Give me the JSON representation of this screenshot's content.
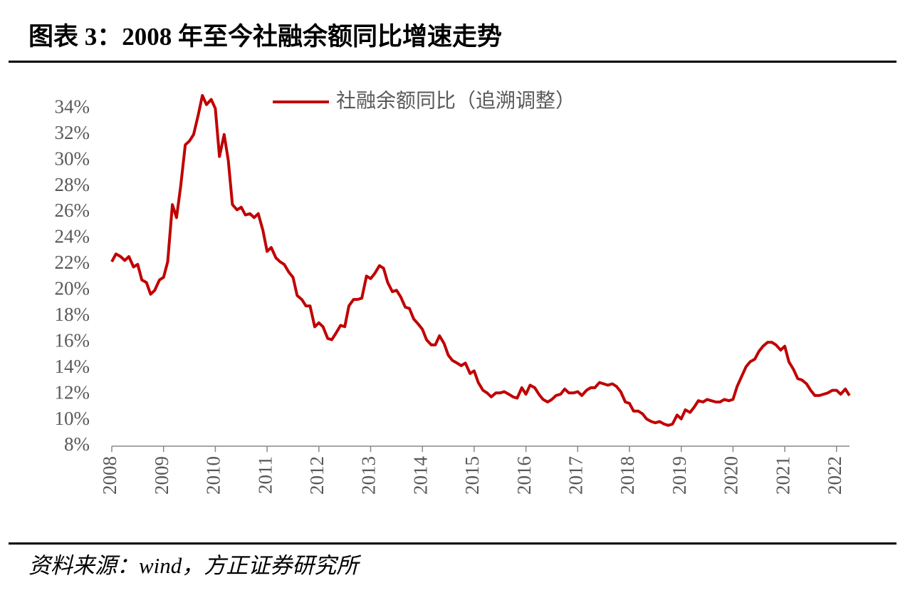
{
  "chart_data": {
    "type": "line",
    "title": "图表 3：2008 年至今社融余额同比增速走势",
    "source": "资料来源：wind，方正证券研究所",
    "x": [
      2008.0,
      2008.08,
      2008.17,
      2008.25,
      2008.33,
      2008.42,
      2008.5,
      2008.58,
      2008.67,
      2008.75,
      2008.83,
      2008.92,
      2009.0,
      2009.08,
      2009.17,
      2009.25,
      2009.33,
      2009.42,
      2009.5,
      2009.58,
      2009.67,
      2009.75,
      2009.83,
      2009.92,
      2010.0,
      2010.08,
      2010.17,
      2010.25,
      2010.33,
      2010.42,
      2010.5,
      2010.58,
      2010.67,
      2010.75,
      2010.83,
      2010.92,
      2011.0,
      2011.08,
      2011.17,
      2011.25,
      2011.33,
      2011.42,
      2011.5,
      2011.58,
      2011.67,
      2011.75,
      2011.83,
      2011.92,
      2012.0,
      2012.08,
      2012.17,
      2012.25,
      2012.33,
      2012.42,
      2012.5,
      2012.58,
      2012.67,
      2012.75,
      2012.83,
      2012.92,
      2013.0,
      2013.08,
      2013.17,
      2013.25,
      2013.33,
      2013.42,
      2013.5,
      2013.58,
      2013.67,
      2013.75,
      2013.83,
      2013.92,
      2014.0,
      2014.08,
      2014.17,
      2014.25,
      2014.33,
      2014.42,
      2014.5,
      2014.58,
      2014.67,
      2014.75,
      2014.83,
      2014.92,
      2015.0,
      2015.08,
      2015.17,
      2015.25,
      2015.33,
      2015.42,
      2015.5,
      2015.58,
      2015.67,
      2015.75,
      2015.83,
      2015.92,
      2016.0,
      2016.08,
      2016.17,
      2016.25,
      2016.33,
      2016.42,
      2016.5,
      2016.58,
      2016.67,
      2016.75,
      2016.83,
      2016.92,
      2017.0,
      2017.08,
      2017.17,
      2017.25,
      2017.33,
      2017.42,
      2017.5,
      2017.58,
      2017.67,
      2017.75,
      2017.83,
      2017.92,
      2018.0,
      2018.08,
      2018.17,
      2018.25,
      2018.33,
      2018.42,
      2018.5,
      2018.58,
      2018.67,
      2018.75,
      2018.83,
      2018.92,
      2019.0,
      2019.08,
      2019.17,
      2019.25,
      2019.33,
      2019.42,
      2019.5,
      2019.58,
      2019.67,
      2019.75,
      2019.83,
      2019.92,
      2020.0,
      2020.08,
      2020.17,
      2020.25,
      2020.33,
      2020.42,
      2020.5,
      2020.58,
      2020.67,
      2020.75,
      2020.83,
      2020.92,
      2021.0,
      2021.08,
      2021.17,
      2021.25,
      2021.33,
      2021.42,
      2021.5,
      2021.58,
      2021.67,
      2021.75,
      2021.83,
      2021.92,
      2022.0,
      2022.08,
      2022.17,
      2022.25
    ],
    "series": [
      {
        "name": "社融余额同比（追溯调整）",
        "color": "#c00000",
        "values": [
          22.2,
          22.8,
          22.6,
          22.3,
          22.6,
          21.8,
          22.0,
          20.8,
          20.6,
          19.7,
          20.0,
          20.8,
          21.0,
          22.2,
          26.6,
          25.6,
          28.0,
          31.2,
          31.5,
          32.0,
          33.5,
          35.0,
          34.3,
          34.7,
          34.0,
          30.3,
          32.0,
          30.0,
          26.6,
          26.2,
          26.4,
          25.8,
          25.9,
          25.6,
          25.9,
          24.6,
          23.0,
          23.3,
          22.5,
          22.2,
          22.0,
          21.4,
          21.0,
          19.6,
          19.3,
          18.8,
          18.8,
          17.2,
          17.5,
          17.2,
          16.3,
          16.2,
          16.7,
          17.3,
          17.2,
          18.8,
          19.3,
          19.3,
          19.4,
          21.1,
          20.9,
          21.3,
          21.9,
          21.7,
          20.6,
          19.9,
          20.0,
          19.5,
          18.7,
          18.6,
          17.8,
          17.4,
          17.0,
          16.2,
          15.8,
          15.8,
          16.5,
          15.9,
          15.0,
          14.6,
          14.4,
          14.2,
          14.4,
          13.6,
          13.8,
          12.9,
          12.3,
          12.1,
          11.8,
          12.1,
          12.1,
          12.2,
          12.0,
          11.8,
          11.7,
          12.5,
          12.0,
          12.7,
          12.5,
          12.0,
          11.6,
          11.4,
          11.6,
          11.9,
          12.0,
          12.4,
          12.1,
          12.1,
          12.2,
          11.9,
          12.3,
          12.5,
          12.5,
          12.9,
          12.8,
          12.7,
          12.8,
          12.6,
          12.2,
          11.4,
          11.3,
          10.7,
          10.7,
          10.5,
          10.1,
          9.9,
          9.8,
          9.9,
          9.7,
          9.6,
          9.7,
          10.4,
          10.1,
          10.8,
          10.6,
          11.0,
          11.5,
          11.4,
          11.6,
          11.5,
          11.4,
          11.4,
          11.6,
          11.5,
          11.6,
          12.6,
          13.4,
          14.1,
          14.5,
          14.7,
          15.3,
          15.7,
          16.0,
          16.0,
          15.8,
          15.4,
          15.7,
          14.5,
          13.9,
          13.2,
          13.1,
          12.8,
          12.3,
          11.9,
          11.9,
          12.0,
          12.1,
          12.3,
          12.3,
          12.0,
          12.4,
          11.9
        ]
      }
    ],
    "xlim": [
      2008,
      2022.25
    ],
    "xticks": [
      2008,
      2009,
      2010,
      2011,
      2012,
      2013,
      2014,
      2015,
      2016,
      2017,
      2018,
      2019,
      2020,
      2021,
      2022
    ],
    "ylim": [
      8,
      35
    ],
    "yticks": [
      {
        "value": 8,
        "label": "8%"
      },
      {
        "value": 10,
        "label": "10%"
      },
      {
        "value": 12,
        "label": "12%"
      },
      {
        "value": 14,
        "label": "14%"
      },
      {
        "value": 16,
        "label": "16%"
      },
      {
        "value": 18,
        "label": "18%"
      },
      {
        "value": 20,
        "label": "20%"
      },
      {
        "value": 22,
        "label": "22%"
      },
      {
        "value": 24,
        "label": "24%"
      },
      {
        "value": 26,
        "label": "26%"
      },
      {
        "value": 28,
        "label": "28%"
      },
      {
        "value": 30,
        "label": "30%"
      },
      {
        "value": 32,
        "label": "32%"
      },
      {
        "value": 34,
        "label": "34%"
      }
    ],
    "legend": "top"
  }
}
